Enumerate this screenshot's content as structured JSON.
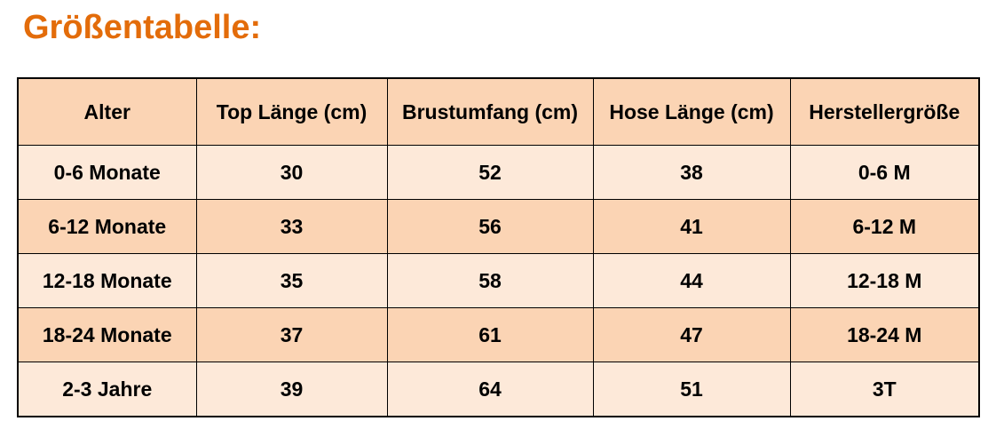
{
  "title": "Größentabelle:",
  "colors": {
    "title": "#e36c0a",
    "header_bg": "#fbd4b4",
    "row_light": "#fde9d9",
    "row_dark": "#fbd4b4"
  },
  "table": {
    "headers": [
      "Alter",
      "Top Länge (cm)",
      "Brustumfang (cm)",
      "Hose Länge (cm)",
      "Herstellergröße"
    ],
    "rows": [
      [
        "0-6 Monate",
        "30",
        "52",
        "38",
        "0-6 M"
      ],
      [
        "6-12 Monate",
        "33",
        "56",
        "41",
        "6-12 M"
      ],
      [
        "12-18 Monate",
        "35",
        "58",
        "44",
        "12-18 M"
      ],
      [
        "18-24 Monate",
        "37",
        "61",
        "47",
        "18-24 M"
      ],
      [
        "2-3 Jahre",
        "39",
        "64",
        "51",
        "3T"
      ]
    ]
  }
}
